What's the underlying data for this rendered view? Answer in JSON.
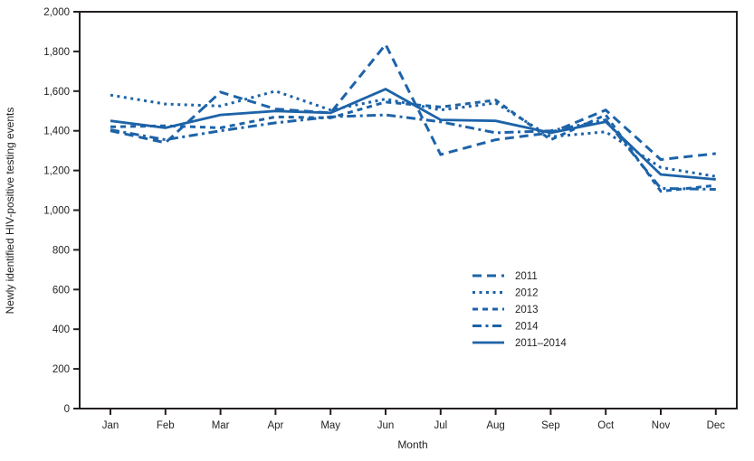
{
  "figure": {
    "background": "#ffffff"
  },
  "chart_data": {
    "type": "line",
    "title": "",
    "xlabel": "Month",
    "ylabel": "Newly identified HIV-positive testing events",
    "categories": [
      "Jan",
      "Feb",
      "Mar",
      "Apr",
      "May",
      "Jun",
      "Jul",
      "Aug",
      "Sep",
      "Oct",
      "Nov",
      "Dec"
    ],
    "ylim": [
      0,
      2000
    ],
    "ytick_step": 200,
    "ytick_labels": [
      "0",
      "200",
      "400",
      "600",
      "800",
      "1,000",
      "1,200",
      "1,400",
      "1,600",
      "1,800",
      "2,000"
    ],
    "grid": "off",
    "frame": "full-box",
    "line_color": "#1d63a8",
    "axis_color": "#231f20",
    "legend_position": "inside-center-right",
    "series": [
      {
        "name": "2011",
        "style": "long-dash",
        "values": [
          1400,
          1340,
          1595,
          1510,
          1490,
          1835,
          1280,
          1355,
          1390,
          1505,
          1255,
          1285
        ]
      },
      {
        "name": "2012",
        "style": "dotted",
        "values": [
          1580,
          1535,
          1525,
          1600,
          1505,
          1560,
          1505,
          1540,
          1370,
          1395,
          1215,
          1170
        ]
      },
      {
        "name": "2013",
        "style": "short-dash",
        "values": [
          1420,
          1425,
          1415,
          1470,
          1465,
          1545,
          1520,
          1555,
          1355,
          1480,
          1095,
          1125
        ]
      },
      {
        "name": "2014",
        "style": "dash-dot",
        "values": [
          1405,
          1355,
          1400,
          1440,
          1470,
          1480,
          1445,
          1390,
          1400,
          1455,
          1110,
          1105
        ]
      },
      {
        "name": "2011–2014",
        "style": "solid",
        "values": [
          1450,
          1415,
          1480,
          1500,
          1490,
          1610,
          1455,
          1450,
          1390,
          1445,
          1180,
          1155
        ]
      }
    ]
  }
}
